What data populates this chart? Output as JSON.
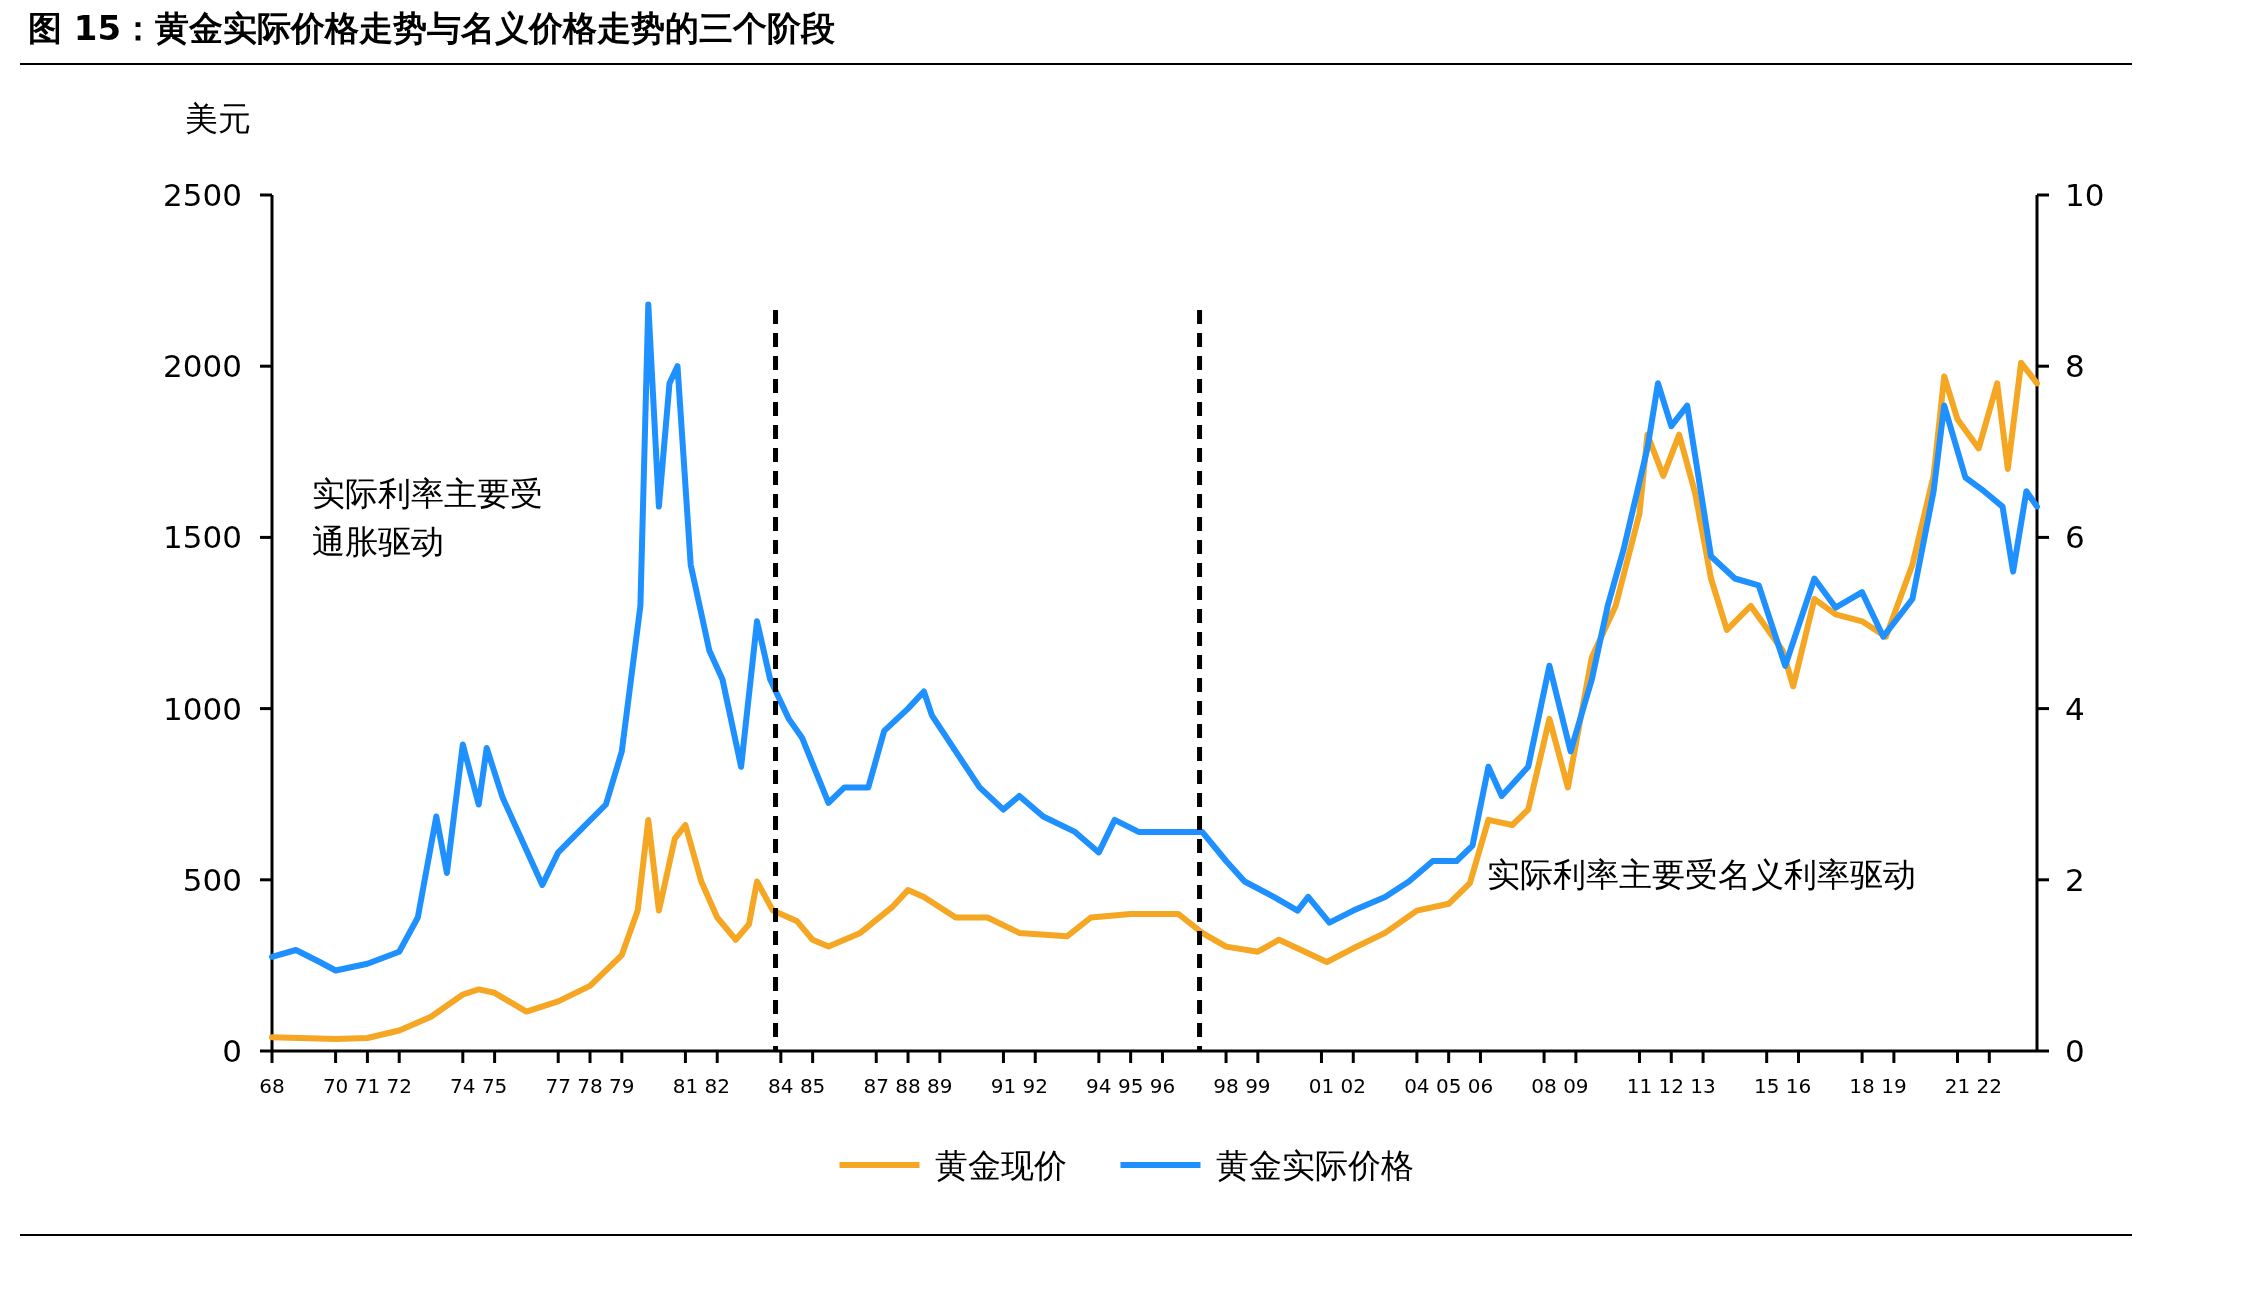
{
  "chart_data": {
    "type": "line",
    "title": "图 15：黄金实际价格走势与名义价格走势的三个阶段",
    "ylabel": "美元",
    "xlim": [
      "1968-01",
      "2023-07"
    ],
    "ylim": [
      0,
      2500
    ],
    "yticks": [
      0,
      500,
      1000,
      1500,
      2000,
      2500
    ],
    "y2lim": [
      0,
      10
    ],
    "y2ticks": [
      0,
      2,
      4,
      6,
      8,
      10
    ],
    "xticks": [
      {
        "value": "1968",
        "label": "68"
      },
      {
        "value": "1970",
        "label": "70"
      },
      {
        "value": "1971",
        "label": "71"
      },
      {
        "value": "1972",
        "label": "72"
      },
      {
        "value": "1974",
        "label": "74"
      },
      {
        "value": "1975",
        "label": "75"
      },
      {
        "value": "1977",
        "label": "77"
      },
      {
        "value": "1978",
        "label": "78"
      },
      {
        "value": "1979",
        "label": "79"
      },
      {
        "value": "1981",
        "label": "81"
      },
      {
        "value": "1982",
        "label": "82"
      },
      {
        "value": "1984",
        "label": "84"
      },
      {
        "value": "1985",
        "label": "85"
      },
      {
        "value": "1987",
        "label": "87"
      },
      {
        "value": "1988",
        "label": "88"
      },
      {
        "value": "1989",
        "label": "89"
      },
      {
        "value": "1991",
        "label": "91"
      },
      {
        "value": "1992",
        "label": "92"
      },
      {
        "value": "1994",
        "label": "94"
      },
      {
        "value": "1995",
        "label": "95"
      },
      {
        "value": "1996",
        "label": "96"
      },
      {
        "value": "1998",
        "label": "98"
      },
      {
        "value": "1999",
        "label": "99"
      },
      {
        "value": "2001",
        "label": "01"
      },
      {
        "value": "2002",
        "label": "02"
      },
      {
        "value": "2004",
        "label": "04"
      },
      {
        "value": "2005",
        "label": "05"
      },
      {
        "value": "2006",
        "label": "06"
      },
      {
        "value": "2008",
        "label": "08"
      },
      {
        "value": "2009",
        "label": "09"
      },
      {
        "value": "2011",
        "label": "11"
      },
      {
        "value": "2012",
        "label": "12"
      },
      {
        "value": "2013",
        "label": "13"
      },
      {
        "value": "2015",
        "label": "15"
      },
      {
        "value": "2016",
        "label": "16"
      },
      {
        "value": "2018",
        "label": "18"
      },
      {
        "value": "2019",
        "label": "19"
      },
      {
        "value": "2021",
        "label": "21"
      },
      {
        "value": "2022",
        "label": "22"
      }
    ],
    "series": [
      {
        "name": "黄金现价",
        "color": "#f5a623",
        "x": [
          "1968-01",
          "1970-01",
          "1971-01",
          "1972-01",
          "1973-01",
          "1974-01",
          "1974-07",
          "1975-01",
          "1976-01",
          "1977-01",
          "1978-01",
          "1979-01",
          "1979-07",
          "1979-11",
          "1980-03",
          "1980-09",
          "1981-01",
          "1981-07",
          "1982-01",
          "1982-08",
          "1983-01",
          "1983-04",
          "1983-10",
          "1984-07",
          "1985-01",
          "1985-07",
          "1986-07",
          "1987-07",
          "1988-01",
          "1988-07",
          "1989-07",
          "1990-07",
          "1991-07",
          "1993-01",
          "1993-10",
          "1995-01",
          "1996-07",
          "1997-04",
          "1998-01",
          "1999-01",
          "1999-09",
          "2001-03",
          "2002-01",
          "2003-01",
          "2004-01",
          "2005-01",
          "2005-09",
          "2006-04",
          "2007-01",
          "2007-07",
          "2008-03",
          "2008-10",
          "2009-07",
          "2010-04",
          "2011-01",
          "2011-04",
          "2011-10",
          "2012-04",
          "2012-10",
          "2013-04",
          "2013-10",
          "2014-07",
          "2015-07",
          "2015-11",
          "2016-07",
          "2017-03",
          "2018-01",
          "2018-10",
          "2019-08",
          "2020-04",
          "2020-08",
          "2021-01",
          "2021-09",
          "2022-04",
          "2022-08",
          "2023-01",
          "2023-07"
        ],
        "values": [
          40,
          35,
          38,
          60,
          100,
          165,
          180,
          170,
          115,
          145,
          190,
          280,
          410,
          675,
          410,
          620,
          660,
          495,
          390,
          325,
          370,
          495,
          410,
          380,
          325,
          305,
          345,
          420,
          470,
          450,
          390,
          390,
          345,
          335,
          390,
          400,
          400,
          345,
          305,
          290,
          325,
          260,
          300,
          345,
          410,
          430,
          490,
          675,
          660,
          705,
          970,
          770,
          1150,
          1300,
          1570,
          1800,
          1680,
          1800,
          1630,
          1380,
          1230,
          1300,
          1170,
          1065,
          1320,
          1275,
          1255,
          1210,
          1420,
          1680,
          1970,
          1845,
          1760,
          1950,
          1700,
          2010,
          1950
        ]
      },
      {
        "name": "黄金实际价格",
        "color": "#1e90ff",
        "x": [
          "1968-01",
          "1968-10",
          "1969-07",
          "1970-01",
          "1971-01",
          "1972-01",
          "1972-08",
          "1973-03",
          "1973-07",
          "1974-01",
          "1974-07",
          "1974-10",
          "1975-04",
          "1976-07",
          "1977-01",
          "1977-10",
          "1978-07",
          "1979-01",
          "1979-08",
          "1979-11",
          "1980-03",
          "1980-07",
          "1980-10",
          "1981-03",
          "1981-10",
          "1982-03",
          "1982-10",
          "1983-04",
          "1983-09",
          "1984-04",
          "1984-09",
          "1985-07",
          "1986-01",
          "1986-10",
          "1987-04",
          "1988-01",
          "1988-07",
          "1988-10",
          "1989-07",
          "1990-04",
          "1991-01",
          "1991-07",
          "1992-04",
          "1993-04",
          "1994-01",
          "1994-07",
          "1995-04",
          "1996-07",
          "1997-04",
          "1998-01",
          "1998-08",
          "1999-07",
          "2000-04",
          "2000-08",
          "2001-04",
          "2002-01",
          "2003-01",
          "2003-10",
          "2004-07",
          "2005-04",
          "2005-10",
          "2006-04",
          "2006-09",
          "2007-07",
          "2008-03",
          "2008-07",
          "2008-11",
          "2009-07",
          "2010-01",
          "2010-07",
          "2011-04",
          "2011-08",
          "2012-01",
          "2012-07",
          "2013-04",
          "2014-01",
          "2014-10",
          "2015-08",
          "2016-07",
          "2017-03",
          "2018-01",
          "2018-09",
          "2019-08",
          "2020-04",
          "2020-08",
          "2021-04",
          "2021-11",
          "2022-06",
          "2022-10",
          "2023-03",
          "2023-07"
        ],
        "values": [
          275,
          295,
          260,
          235,
          255,
          290,
          390,
          685,
          520,
          895,
          720,
          885,
          740,
          485,
          580,
          650,
          720,
          875,
          1300,
          2180,
          1590,
          1950,
          2000,
          1420,
          1170,
          1085,
          830,
          1255,
          1085,
          970,
          915,
          725,
          770,
          770,
          935,
          1000,
          1050,
          980,
          875,
          770,
          705,
          745,
          685,
          640,
          580,
          675,
          640,
          640,
          640,
          555,
          495,
          450,
          410,
          450,
          375,
          410,
          450,
          495,
          555,
          555,
          600,
          830,
          745,
          830,
          1125,
          1000,
          875,
          1085,
          1300,
          1465,
          1760,
          1950,
          1825,
          1885,
          1445,
          1380,
          1360,
          1125,
          1380,
          1295,
          1340,
          1210,
          1320,
          1635,
          1885,
          1675,
          1635,
          1590,
          1400,
          1635,
          1590
        ]
      }
    ],
    "ref_lines": [
      {
        "axis": "x",
        "value": "1983-11",
        "color": "#000000",
        "line_style": "dashed"
      },
      {
        "axis": "x",
        "value": "1997-03",
        "color": "#000000",
        "line_style": "dashed"
      }
    ],
    "annotations": [
      "实际利率主要受通胀驱动",
      "实际利率主要受名义利率驱动"
    ],
    "grid": false,
    "legend": "bottom",
    "marker": "none",
    "line_style": "solid"
  }
}
